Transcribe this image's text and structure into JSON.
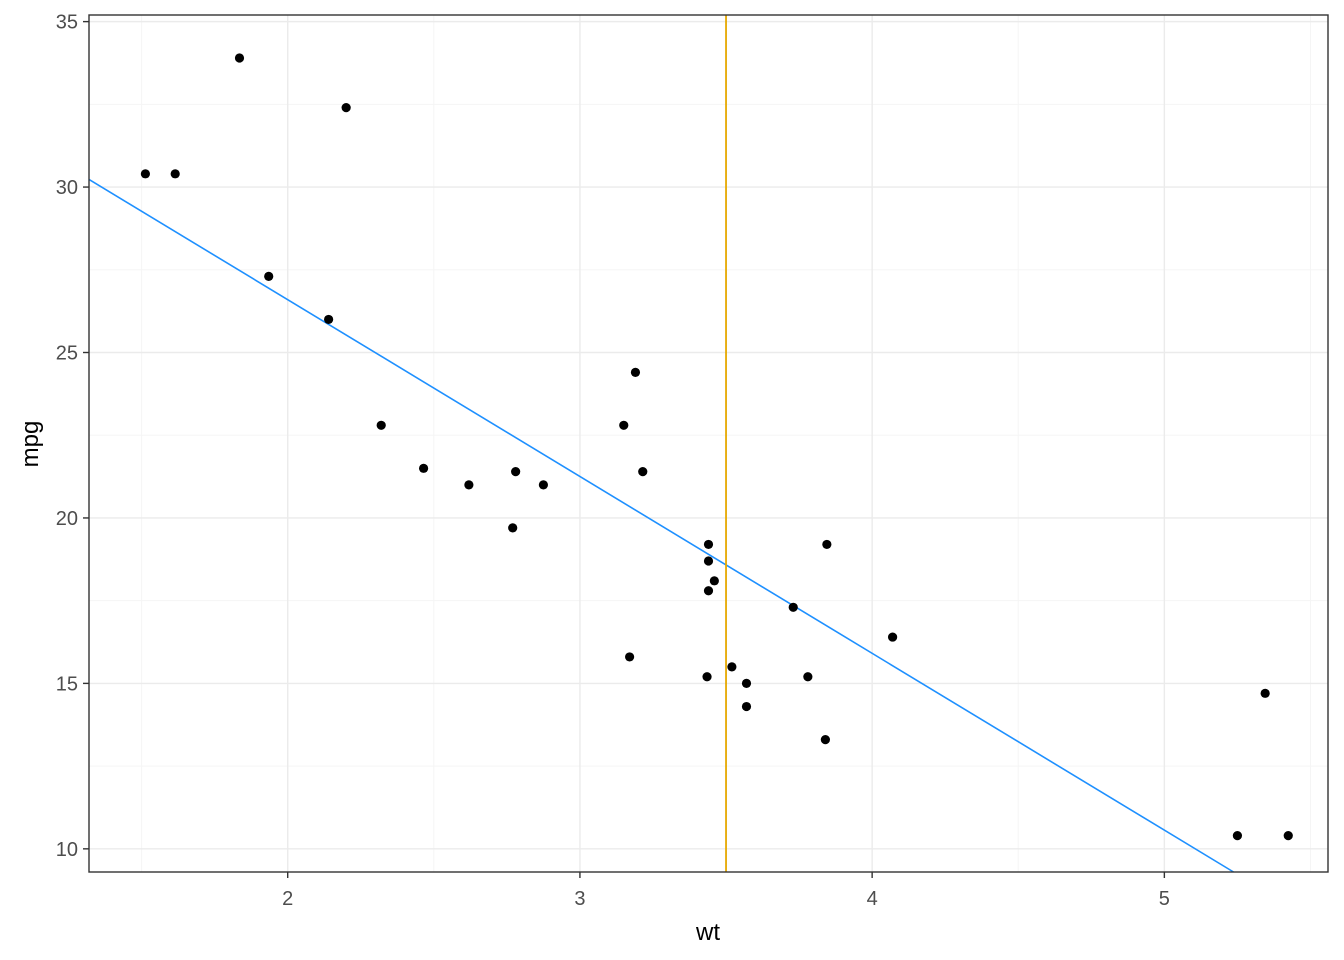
{
  "chart_data": {
    "type": "scatter",
    "title": "",
    "xlabel": "wt",
    "ylabel": "mpg",
    "xlim": [
      1.32,
      5.56
    ],
    "ylim": [
      9.3,
      35.2
    ],
    "x_ticks_major": [
      2,
      3,
      4,
      5
    ],
    "x_ticks_minor": [
      1.5,
      2.5,
      3.5,
      4.5,
      5.5
    ],
    "y_ticks_major": [
      10,
      15,
      20,
      25,
      30,
      35
    ],
    "y_ticks_minor": [
      12.5,
      17.5,
      22.5,
      27.5,
      32.5
    ],
    "grid": true,
    "points": [
      {
        "x": 2.62,
        "y": 21.0
      },
      {
        "x": 2.875,
        "y": 21.0
      },
      {
        "x": 2.32,
        "y": 22.8
      },
      {
        "x": 3.215,
        "y": 21.4
      },
      {
        "x": 3.44,
        "y": 18.7
      },
      {
        "x": 3.46,
        "y": 18.1
      },
      {
        "x": 3.57,
        "y": 14.3
      },
      {
        "x": 3.19,
        "y": 24.4
      },
      {
        "x": 3.15,
        "y": 22.8
      },
      {
        "x": 3.44,
        "y": 19.2
      },
      {
        "x": 3.44,
        "y": 17.8
      },
      {
        "x": 4.07,
        "y": 16.4
      },
      {
        "x": 3.73,
        "y": 17.3
      },
      {
        "x": 3.78,
        "y": 15.2
      },
      {
        "x": 5.25,
        "y": 10.4
      },
      {
        "x": 5.424,
        "y": 10.4
      },
      {
        "x": 5.345,
        "y": 14.7
      },
      {
        "x": 2.2,
        "y": 32.4
      },
      {
        "x": 1.615,
        "y": 30.4
      },
      {
        "x": 1.835,
        "y": 33.9
      },
      {
        "x": 2.465,
        "y": 21.5
      },
      {
        "x": 3.52,
        "y": 15.5
      },
      {
        "x": 3.435,
        "y": 15.2
      },
      {
        "x": 3.84,
        "y": 13.3
      },
      {
        "x": 3.845,
        "y": 19.2
      },
      {
        "x": 1.935,
        "y": 27.3
      },
      {
        "x": 2.14,
        "y": 26.0
      },
      {
        "x": 1.513,
        "y": 30.4
      },
      {
        "x": 3.17,
        "y": 15.8
      },
      {
        "x": 2.77,
        "y": 19.7
      },
      {
        "x": 3.57,
        "y": 15.0
      },
      {
        "x": 2.78,
        "y": 21.4
      }
    ],
    "regression_line": {
      "intercept": 37.285,
      "slope": -5.344,
      "color": "#1E90FF"
    },
    "vertical_line": {
      "x": 3.5,
      "color": "#E6A800"
    },
    "point_color": "#000000",
    "panel_border_color": "#333333",
    "grid_major_color": "#EBEBEB",
    "grid_minor_color": "#F5F5F5"
  }
}
